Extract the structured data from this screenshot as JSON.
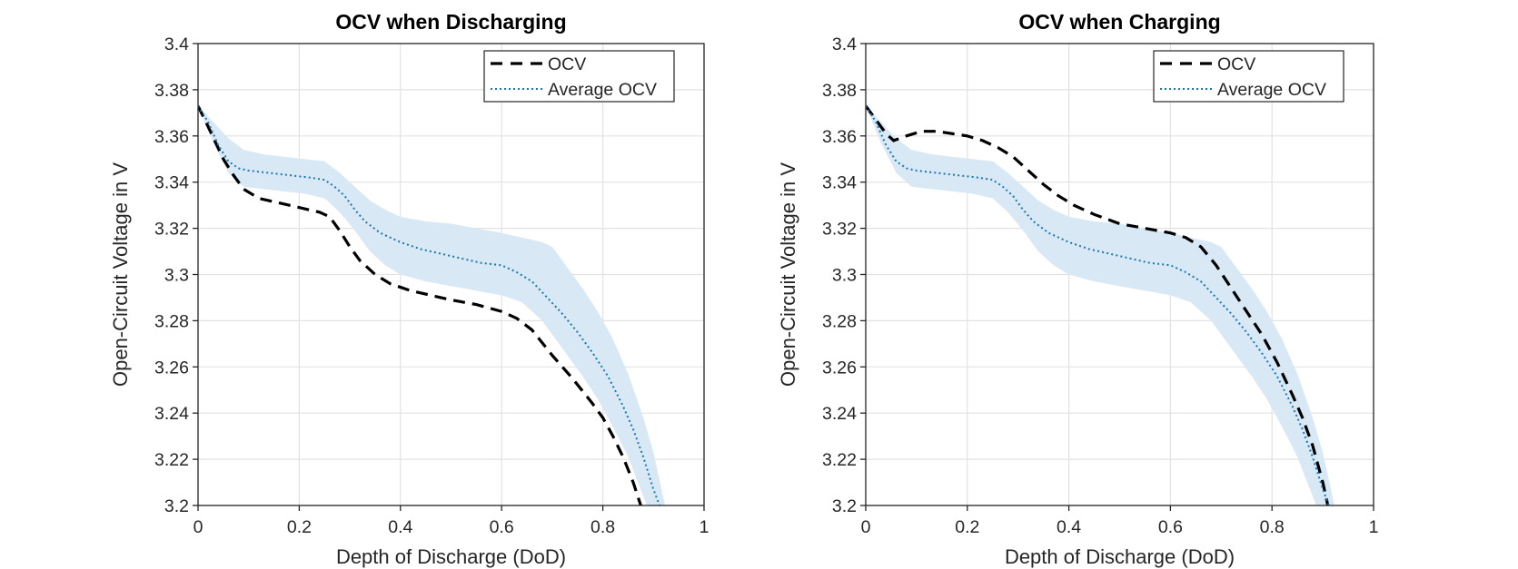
{
  "page": {
    "background": "#ffffff"
  },
  "style": {
    "axis_color": "#262626",
    "grid_color": "#e2e2e2",
    "title_color": "#000000",
    "label_color": "#262626",
    "ocv_color": "#000000",
    "average_color": "#1878b0",
    "band_color": "#d9e8f5"
  },
  "chart_data": [
    {
      "id": "discharging",
      "type": "line",
      "title": "OCV when Discharging",
      "xlabel": "Depth of Discharge (DoD)",
      "ylabel": "Open-Circuit Voltage in V",
      "xlim": [
        0,
        1
      ],
      "ylim": [
        3.2,
        3.4
      ],
      "grid": true,
      "xticks": [
        0,
        0.2,
        0.4,
        0.6,
        0.8,
        1
      ],
      "xtick_labels": [
        "0",
        "0.2",
        "0.4",
        "0.6",
        "0.8",
        "1"
      ],
      "yticks": [
        3.2,
        3.22,
        3.24,
        3.26,
        3.28,
        3.3,
        3.32,
        3.34,
        3.36,
        3.38,
        3.4
      ],
      "ytick_labels": [
        "3.2",
        "3.22",
        "3.24",
        "3.26",
        "3.28",
        "3.3",
        "3.32",
        "3.34",
        "3.36",
        "3.38",
        "3.4"
      ],
      "legend": {
        "position": "top-right",
        "entries": [
          {
            "label": "OCV",
            "style": "dashed",
            "color": "#000000"
          },
          {
            "label": "Average OCV",
            "style": "dotted",
            "color": "#1878b0"
          }
        ]
      },
      "band": {
        "name": "average-ocv-std-band",
        "color": "#d9e8f5",
        "x": [
          0,
          0.03,
          0.06,
          0.09,
          0.13,
          0.17,
          0.21,
          0.25,
          0.28,
          0.31,
          0.34,
          0.37,
          0.4,
          0.45,
          0.5,
          0.55,
          0.6,
          0.64,
          0.68,
          0.7,
          0.73,
          0.76,
          0.79,
          0.82,
          0.85,
          0.88,
          0.9,
          0.925
        ],
        "upper": [
          3.373,
          3.366,
          3.359,
          3.354,
          3.352,
          3.351,
          3.35,
          3.349,
          3.344,
          3.338,
          3.332,
          3.328,
          3.325,
          3.323,
          3.322,
          3.32,
          3.318,
          3.316,
          3.314,
          3.312,
          3.303,
          3.294,
          3.284,
          3.272,
          3.257,
          3.238,
          3.223,
          3.198
        ],
        "lower": [
          3.373,
          3.357,
          3.344,
          3.338,
          3.337,
          3.336,
          3.335,
          3.333,
          3.327,
          3.319,
          3.31,
          3.304,
          3.3,
          3.297,
          3.295,
          3.293,
          3.291,
          3.288,
          3.28,
          3.274,
          3.265,
          3.256,
          3.246,
          3.234,
          3.221,
          3.204,
          3.193,
          3.18
        ]
      },
      "series": [
        {
          "name": "OCV",
          "style": "dashed",
          "color": "#000000",
          "width": 3.2,
          "x": [
            0,
            0.02,
            0.05,
            0.07,
            0.09,
            0.12,
            0.16,
            0.2,
            0.24,
            0.26,
            0.28,
            0.3,
            0.32,
            0.35,
            0.38,
            0.42,
            0.46,
            0.5,
            0.55,
            0.6,
            0.63,
            0.66,
            0.7,
            0.74,
            0.78,
            0.8,
            0.82,
            0.84,
            0.86,
            0.875
          ],
          "y": [
            3.373,
            3.364,
            3.35,
            3.343,
            3.337,
            3.333,
            3.331,
            3.329,
            3.327,
            3.325,
            3.319,
            3.312,
            3.306,
            3.3,
            3.296,
            3.293,
            3.291,
            3.289,
            3.287,
            3.284,
            3.281,
            3.276,
            3.265,
            3.255,
            3.244,
            3.238,
            3.23,
            3.221,
            3.21,
            3.2
          ]
        },
        {
          "name": "Average OCV",
          "style": "dotted",
          "color": "#1878b0",
          "width": 2,
          "x": [
            0,
            0.02,
            0.04,
            0.06,
            0.08,
            0.1,
            0.14,
            0.18,
            0.22,
            0.25,
            0.27,
            0.29,
            0.31,
            0.33,
            0.36,
            0.4,
            0.44,
            0.48,
            0.52,
            0.56,
            0.6,
            0.63,
            0.66,
            0.69,
            0.72,
            0.75,
            0.78,
            0.81,
            0.84,
            0.86,
            0.88,
            0.9,
            0.912
          ],
          "y": [
            3.373,
            3.366,
            3.356,
            3.349,
            3.346,
            3.345,
            3.344,
            3.343,
            3.342,
            3.341,
            3.338,
            3.334,
            3.328,
            3.323,
            3.318,
            3.314,
            3.311,
            3.309,
            3.307,
            3.305,
            3.304,
            3.301,
            3.297,
            3.29,
            3.283,
            3.275,
            3.266,
            3.256,
            3.243,
            3.233,
            3.221,
            3.207,
            3.2
          ]
        }
      ]
    },
    {
      "id": "charging",
      "type": "line",
      "title": "OCV when Charging",
      "xlabel": "Depth of Discharge (DoD)",
      "ylabel": "Open-Circuit Voltage in V",
      "xlim": [
        0,
        1
      ],
      "ylim": [
        3.2,
        3.4
      ],
      "grid": true,
      "xticks": [
        0,
        0.2,
        0.4,
        0.6,
        0.8,
        1
      ],
      "xtick_labels": [
        "0",
        "0.2",
        "0.4",
        "0.6",
        "0.8",
        "1"
      ],
      "yticks": [
        3.2,
        3.22,
        3.24,
        3.26,
        3.28,
        3.3,
        3.32,
        3.34,
        3.36,
        3.38,
        3.4
      ],
      "ytick_labels": [
        "3.2",
        "3.22",
        "3.24",
        "3.26",
        "3.28",
        "3.3",
        "3.32",
        "3.34",
        "3.36",
        "3.38",
        "3.4"
      ],
      "legend": {
        "position": "top-right",
        "entries": [
          {
            "label": "OCV",
            "style": "dashed",
            "color": "#000000"
          },
          {
            "label": "Average OCV",
            "style": "dotted",
            "color": "#1878b0"
          }
        ]
      },
      "band": {
        "name": "average-ocv-std-band",
        "color": "#d9e8f5",
        "x": [
          0,
          0.03,
          0.06,
          0.09,
          0.13,
          0.17,
          0.21,
          0.25,
          0.28,
          0.31,
          0.34,
          0.37,
          0.4,
          0.45,
          0.5,
          0.55,
          0.6,
          0.64,
          0.68,
          0.7,
          0.73,
          0.76,
          0.79,
          0.82,
          0.85,
          0.88,
          0.9,
          0.925
        ],
        "upper": [
          3.373,
          3.366,
          3.359,
          3.354,
          3.352,
          3.351,
          3.35,
          3.349,
          3.344,
          3.338,
          3.332,
          3.328,
          3.325,
          3.323,
          3.322,
          3.32,
          3.318,
          3.316,
          3.314,
          3.312,
          3.303,
          3.294,
          3.284,
          3.272,
          3.257,
          3.238,
          3.223,
          3.198
        ],
        "lower": [
          3.373,
          3.357,
          3.344,
          3.338,
          3.337,
          3.336,
          3.335,
          3.333,
          3.327,
          3.319,
          3.31,
          3.304,
          3.3,
          3.297,
          3.295,
          3.293,
          3.291,
          3.288,
          3.28,
          3.274,
          3.265,
          3.256,
          3.246,
          3.234,
          3.221,
          3.204,
          3.193,
          3.18
        ]
      },
      "series": [
        {
          "name": "OCV",
          "style": "dashed",
          "color": "#000000",
          "width": 3.2,
          "x": [
            0,
            0.02,
            0.04,
            0.055,
            0.08,
            0.11,
            0.14,
            0.17,
            0.2,
            0.23,
            0.26,
            0.29,
            0.32,
            0.35,
            0.38,
            0.41,
            0.45,
            0.5,
            0.55,
            0.6,
            0.63,
            0.66,
            0.69,
            0.72,
            0.75,
            0.78,
            0.81,
            0.84,
            0.86,
            0.88,
            0.9,
            0.91
          ],
          "y": [
            3.373,
            3.367,
            3.361,
            3.358,
            3.36,
            3.362,
            3.362,
            3.361,
            3.36,
            3.358,
            3.355,
            3.351,
            3.345,
            3.339,
            3.334,
            3.33,
            3.326,
            3.322,
            3.32,
            3.318,
            3.316,
            3.312,
            3.304,
            3.294,
            3.284,
            3.274,
            3.262,
            3.248,
            3.238,
            3.226,
            3.21,
            3.2
          ]
        },
        {
          "name": "Average OCV",
          "style": "dotted",
          "color": "#1878b0",
          "width": 2,
          "x": [
            0,
            0.02,
            0.04,
            0.06,
            0.08,
            0.1,
            0.14,
            0.18,
            0.22,
            0.25,
            0.27,
            0.29,
            0.31,
            0.33,
            0.36,
            0.4,
            0.44,
            0.48,
            0.52,
            0.56,
            0.6,
            0.63,
            0.66,
            0.69,
            0.72,
            0.75,
            0.78,
            0.81,
            0.84,
            0.86,
            0.88,
            0.9,
            0.912
          ],
          "y": [
            3.373,
            3.366,
            3.356,
            3.349,
            3.346,
            3.345,
            3.344,
            3.343,
            3.342,
            3.341,
            3.338,
            3.334,
            3.328,
            3.323,
            3.318,
            3.314,
            3.311,
            3.309,
            3.307,
            3.305,
            3.304,
            3.301,
            3.297,
            3.29,
            3.283,
            3.275,
            3.266,
            3.256,
            3.243,
            3.233,
            3.221,
            3.207,
            3.2
          ]
        }
      ]
    }
  ]
}
